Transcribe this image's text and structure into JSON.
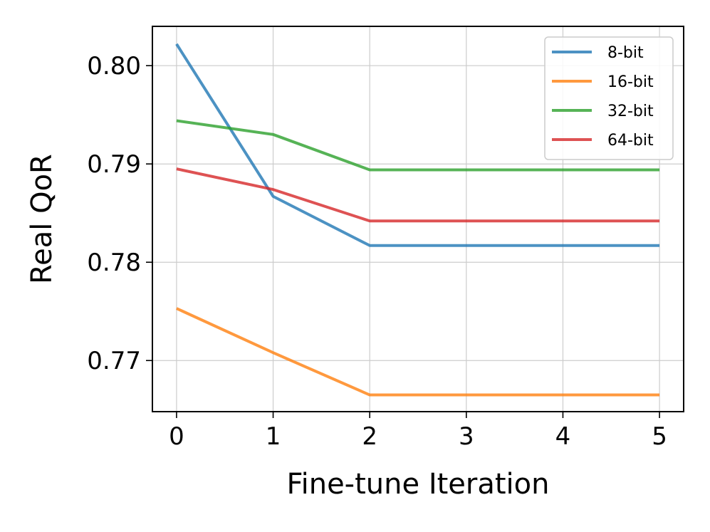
{
  "chart_data": {
    "type": "line",
    "xlabel": "Fine-tune Iteration",
    "ylabel": "Real QoR",
    "x": [
      0,
      1,
      2,
      3,
      4,
      5
    ],
    "xticks": [
      "0",
      "1",
      "2",
      "3",
      "4",
      "5"
    ],
    "yticks": [
      "0.77",
      "0.78",
      "0.79",
      "0.80"
    ],
    "xlim": [
      -0.25,
      5.25
    ],
    "ylim": [
      0.7648,
      0.804
    ],
    "grid": true,
    "legend_position": "top-right",
    "series": [
      {
        "name": "8-bit",
        "color": "#1f77b4",
        "values": [
          0.8022,
          0.7867,
          0.7817,
          0.7817,
          0.7817,
          0.7817
        ]
      },
      {
        "name": "16-bit",
        "color": "#ff7f0e",
        "values": [
          0.7753,
          0.7708,
          0.7665,
          0.7665,
          0.7665,
          0.7665
        ]
      },
      {
        "name": "32-bit",
        "color": "#2ca02c",
        "values": [
          0.7944,
          0.793,
          0.7894,
          0.7894,
          0.7894,
          0.7894
        ]
      },
      {
        "name": "64-bit",
        "color": "#d62728",
        "values": [
          0.7895,
          0.7874,
          0.7842,
          0.7842,
          0.7842,
          0.7842
        ]
      }
    ]
  }
}
